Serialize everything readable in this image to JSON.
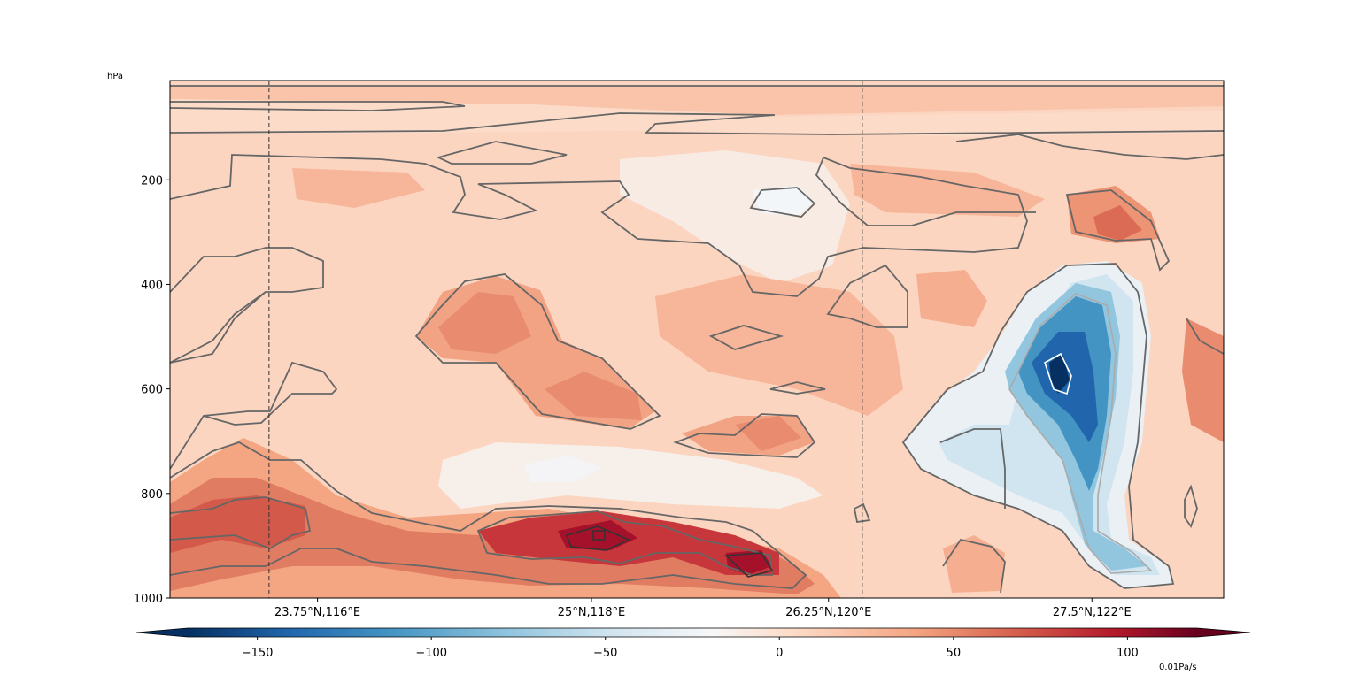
{
  "chart_data": {
    "type": "contourf",
    "title": "",
    "xlabel": "",
    "ylabel": "",
    "y_unit_label": "hPa",
    "y_axis": "pressure, inverted (surface at bottom)",
    "ylim": [
      1000,
      10
    ],
    "yticks": [
      200,
      400,
      600,
      800,
      1000
    ],
    "ytick_labels": [
      "200",
      "400",
      "600",
      "800",
      "1000"
    ],
    "xtick_labels": [
      "23.75°N,116°E",
      "25°N,118°E",
      "26.25°N,120°E",
      "27.5°N,122°E"
    ],
    "xtick_fractions": [
      0.14,
      0.4,
      0.625,
      0.875
    ],
    "dashed_reference_lines_fraction": [
      0.094,
      0.657
    ],
    "colormap": "RdBu_r",
    "colorbar": {
      "orientation": "horizontal",
      "extend": "both",
      "vmin": -170,
      "vmax": 120,
      "ticks": [
        -150,
        -100,
        -50,
        0,
        50,
        100
      ],
      "tick_labels": [
        "−150",
        "−100",
        "−50",
        "0",
        "50",
        "100"
      ],
      "unit_label": "0.01Pa/s",
      "colors": [
        "#053061",
        "#2166ac",
        "#4393c3",
        "#92c5de",
        "#d1e5f0",
        "#f7f7f7",
        "#fddbc7",
        "#f4a582",
        "#d6604d",
        "#b2182b",
        "#67001f"
      ]
    },
    "field_description": [
      {
        "feature": "strong positive (red) band",
        "x_range": [
          0.0,
          0.6
        ],
        "p_range": [
          800,
          1000
        ],
        "max_value": 100
      },
      {
        "feature": "strong negative (blue) core",
        "x_range": [
          0.8,
          0.95
        ],
        "p_range": [
          380,
          950
        ],
        "min_value": -150
      },
      {
        "feature": "weak positive background",
        "x_range": [
          0.0,
          1.0
        ],
        "p_range": [
          10,
          800
        ],
        "typical_value": 15
      }
    ]
  }
}
